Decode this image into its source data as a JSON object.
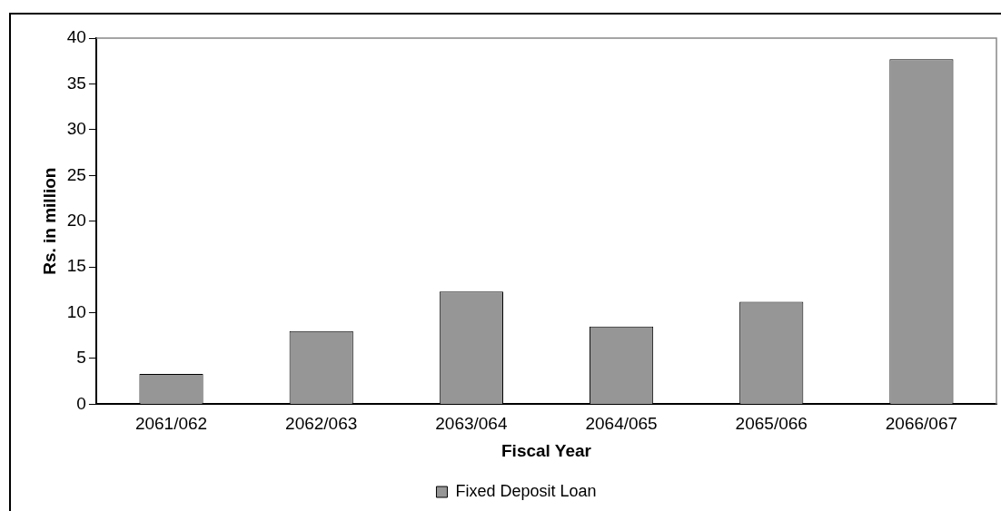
{
  "chart_data": {
    "type": "bar",
    "xlabel": "Fiscal Year",
    "ylabel": "Rs. in million",
    "categories": [
      "2061/062",
      "2062/063",
      "2063/064",
      "2064/065",
      "2065/066",
      "2066/067"
    ],
    "series": [
      {
        "name": "Fixed Deposit Loan",
        "color": "#969696",
        "values": [
          3.3,
          8.0,
          12.3,
          8.5,
          11.2,
          37.7
        ]
      }
    ],
    "ylim": [
      0,
      40
    ],
    "yticks": [
      0,
      5,
      10,
      15,
      20,
      25,
      30,
      35,
      40
    ],
    "grid": false,
    "legend": "bottom"
  }
}
